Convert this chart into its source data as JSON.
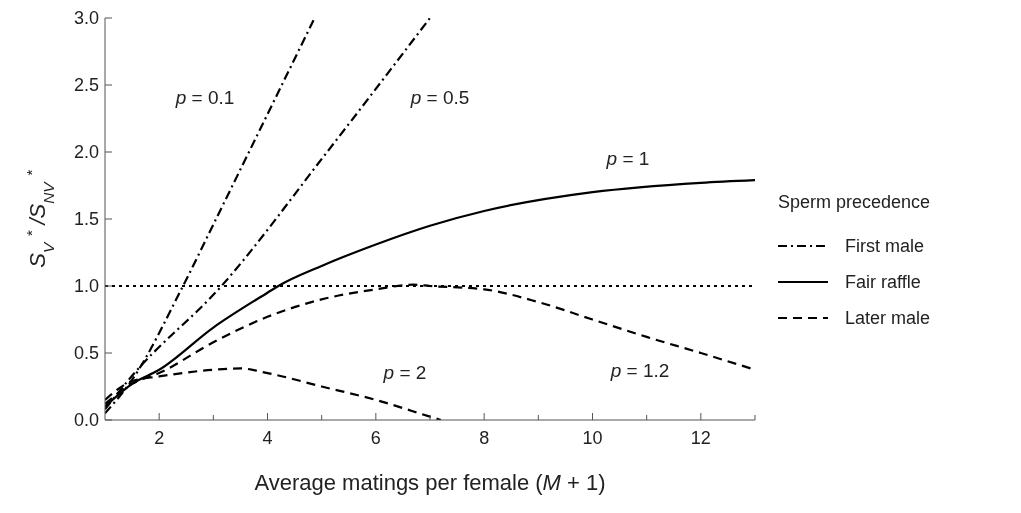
{
  "chart_data": {
    "type": "line",
    "xlabel": "Average matings per female (M + 1)",
    "ylabel": "S$_{V}$$^{*}$/S$_{NV}$$^{*}$",
    "legend_title": "Sperm precedence",
    "legend": "right",
    "grid": false,
    "xlim": [
      1,
      13
    ],
    "ylim": [
      0,
      3
    ],
    "xticks": [
      2,
      4,
      6,
      8,
      10,
      12,
      {
        "value": 3,
        "label": null
      },
      {
        "value": 5,
        "label": null
      },
      {
        "value": 7,
        "label": null
      },
      {
        "value": 9,
        "label": null
      },
      {
        "value": 11,
        "label": null
      },
      {
        "value": 13,
        "label": null
      }
    ],
    "yticks": [
      {
        "value": 0,
        "label": "0.0"
      },
      0.5,
      {
        "value": 1,
        "label": "1.0"
      },
      1.5,
      {
        "value": 2,
        "label": "2.0"
      },
      2.5,
      {
        "value": 3,
        "label": "3.0"
      }
    ],
    "series": [
      {
        "name": "First male",
        "color": "#000000",
        "line_style": "dashdot",
        "x": [
          1,
          1.5,
          2.44,
          3.05,
          4.87
        ],
        "values": [
          0.05,
          0.3,
          1.0,
          1.5,
          3.0
        ]
      },
      {
        "color": "#000000",
        "line_style": "dashdot",
        "x": [
          1,
          1.5,
          3.15,
          5.1,
          7.0
        ],
        "values": [
          0.08,
          0.33,
          1.0,
          2.0,
          3.0
        ]
      },
      {
        "name": "Fair raffle",
        "color": "#000000",
        "line_style": "solid",
        "x": [
          1,
          1.5,
          2,
          3,
          4,
          4.2,
          5,
          6,
          7,
          8,
          10,
          12,
          13
        ],
        "values": [
          0.1,
          0.27,
          0.375,
          0.69,
          0.95,
          1.0,
          1.15,
          1.31,
          1.45,
          1.56,
          1.7,
          1.77,
          1.79
        ]
      },
      {
        "name": "Later male",
        "color": "#000000",
        "line_style": "dashed",
        "x": [
          1,
          1.5,
          2,
          3,
          4,
          5,
          6,
          6.7,
          7,
          8,
          9,
          10,
          11,
          12,
          13
        ],
        "values": [
          0.12,
          0.27,
          0.35,
          0.58,
          0.77,
          0.9,
          0.975,
          1.01,
          1.0,
          0.975,
          0.88,
          0.75,
          0.62,
          0.5,
          0.375
        ]
      },
      {
        "color": "#000000",
        "line_style": "dashed",
        "x": [
          1,
          1.5,
          2,
          3,
          3.5,
          4,
          5,
          6,
          7,
          7.2
        ],
        "values": [
          0.15,
          0.29,
          0.325,
          0.375,
          0.385,
          0.35,
          0.25,
          0.15,
          0.025,
          0
        ]
      }
    ],
    "ref_lines": [
      {
        "axis": "y",
        "value": 1,
        "label": null,
        "color": "#000000",
        "line_style": "dotted"
      }
    ],
    "annotations": [
      "p = 0.1",
      "p = 0.5",
      "p = 1",
      "p = 2",
      "p = 1.2"
    ]
  }
}
